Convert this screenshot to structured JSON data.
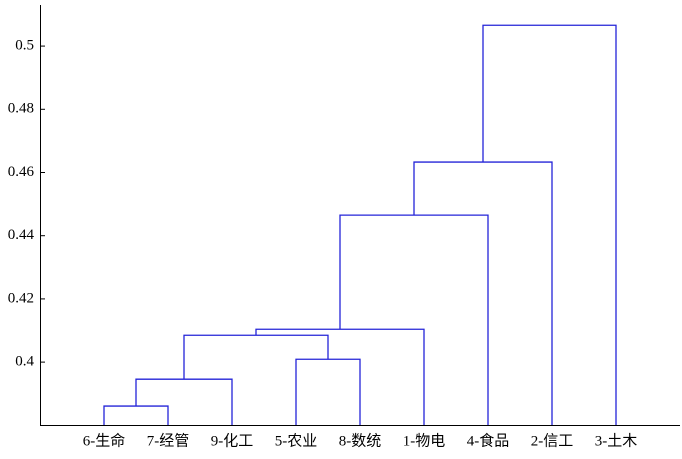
{
  "chart_data": {
    "type": "dendrogram",
    "categories": [
      "6-生命",
      "7-经管",
      "9-化工",
      "5-农业",
      "8-数统",
      "1-物电",
      "4-食品",
      "2-信工",
      "3-土木"
    ],
    "links": [
      {
        "children": [
          0,
          1
        ],
        "height": 0.3861
      },
      {
        "children": [
          9,
          2
        ],
        "height": 0.3946
      },
      {
        "children": [
          3,
          4
        ],
        "height": 0.4009
      },
      {
        "children": [
          10,
          11
        ],
        "height": 0.4085
      },
      {
        "children": [
          12,
          5
        ],
        "height": 0.4104
      },
      {
        "children": [
          13,
          6
        ],
        "height": 0.4465
      },
      {
        "children": [
          14,
          7
        ],
        "height": 0.4633
      },
      {
        "children": [
          15,
          8
        ],
        "height": 0.5066
      }
    ],
    "color": "#2424d8",
    "ylim": [
      0.3801,
      0.513
    ],
    "yticks": [
      0.4,
      0.42,
      0.44,
      0.46,
      0.48,
      0.5
    ]
  }
}
